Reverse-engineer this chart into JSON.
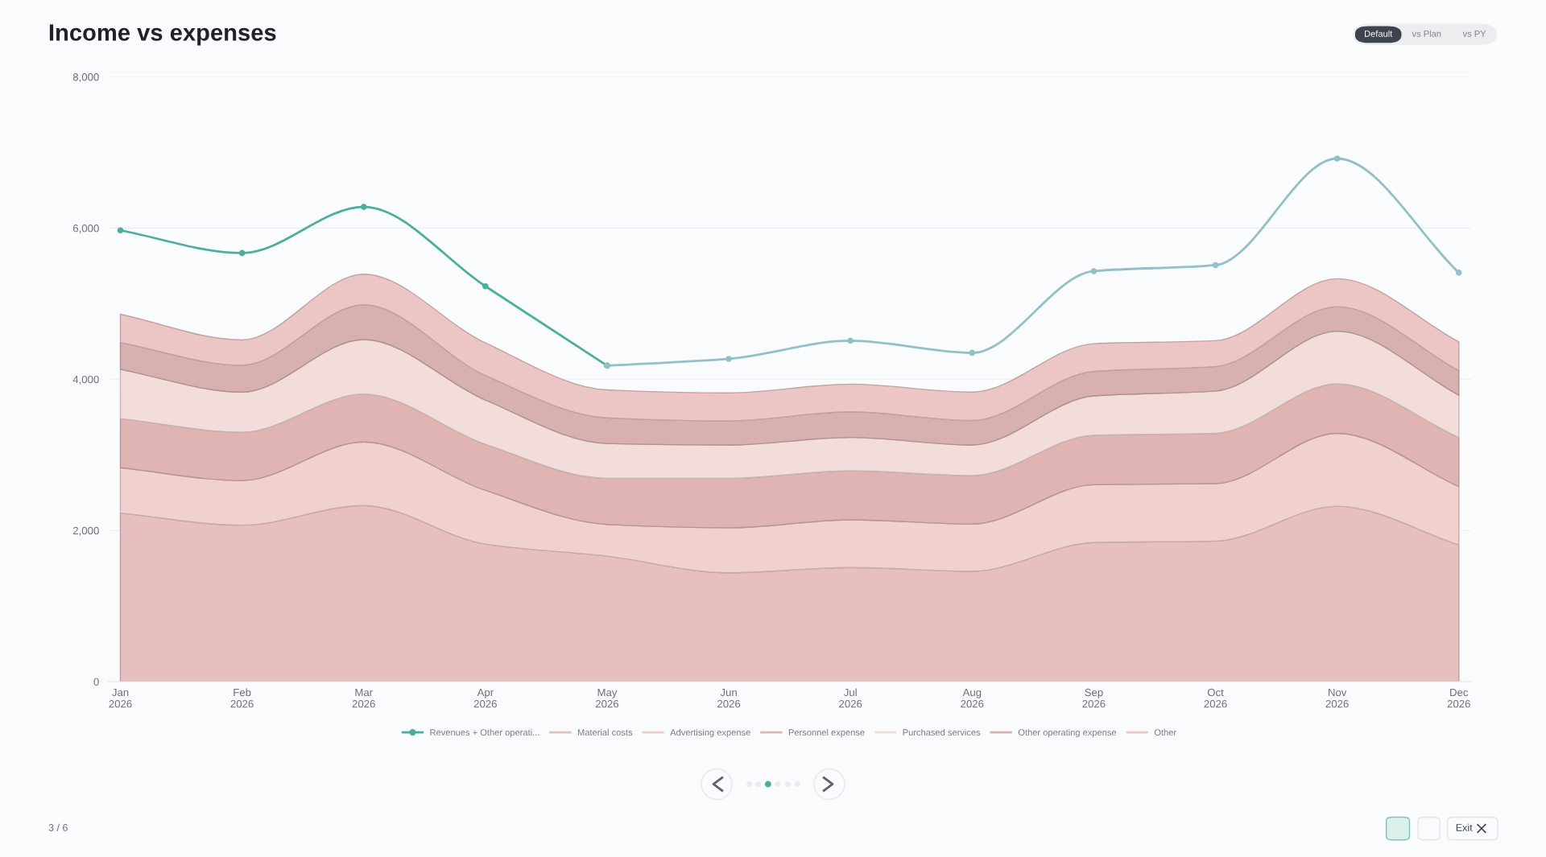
{
  "chart_data": {
    "type": "area",
    "stacked": true,
    "title": "Income vs expenses",
    "categories": [
      "Jan\n2026",
      "Feb\n2026",
      "Mar\n2026",
      "Apr\n2026",
      "May\n2026",
      "Jun\n2026",
      "Jul\n2026",
      "Aug\n2026",
      "Sep\n2026",
      "Oct\n2026",
      "Nov\n2026",
      "Dec\n2026"
    ],
    "ylim": [
      0,
      8000
    ],
    "yticks": [
      0,
      {
        "value": 2000,
        "label": "2,000"
      },
      {
        "value": 4000,
        "label": "4,000"
      },
      {
        "value": 6000,
        "label": "6,000"
      },
      {
        "value": 8000,
        "label": "8,000"
      }
    ],
    "grid": "y",
    "legend": "bottom",
    "series": [
      {
        "name": "Material costs",
        "color": "#e6bfbe",
        "values": [
          2230,
          2070,
          2330,
          1820,
          1660,
          1440,
          1510,
          1460,
          1840,
          1860,
          2320,
          1810
        ]
      },
      {
        "name": "Advertising expense",
        "color": "#f0d1ce",
        "values": [
          600,
          590,
          840,
          710,
          420,
          595,
          630,
          625,
          765,
          760,
          965,
          770
        ]
      },
      {
        "name": "Personnel expense",
        "color": "#dfb4b3",
        "values": [
          650,
          640,
          635,
          610,
          610,
          655,
          650,
          640,
          655,
          665,
          655,
          650
        ]
      },
      {
        "name": "Purchased services",
        "color": "#f3ddda",
        "values": [
          650,
          530,
          720,
          585,
          460,
          440,
          440,
          405,
          520,
          560,
          695,
          560
        ]
      },
      {
        "name": "Other operating expense",
        "color": "#d6b1b0",
        "values": [
          355,
          355,
          460,
          325,
          340,
          320,
          340,
          325,
          325,
          325,
          325,
          325
        ]
      },
      {
        "name": "Other",
        "color": "#ecc6c4",
        "values": [
          375,
          335,
          405,
          430,
          370,
          370,
          365,
          375,
          365,
          340,
          370,
          380
        ]
      },
      {
        "name": "Revenues + Other operati...",
        "type": "line",
        "color": "#4cae9c",
        "marker": "circle",
        "values": [
          5970,
          5670,
          6280,
          5230,
          4180,
          null,
          null,
          null,
          null,
          null,
          null,
          null
        ]
      },
      {
        "type": "line",
        "color": "#93c0c8",
        "marker": "circle",
        "values": [
          null,
          null,
          null,
          null,
          4180,
          4270,
          4510,
          4350,
          5430,
          5510,
          6920,
          5410
        ]
      }
    ],
    "annotations": [
      "Default",
      "vs Plan",
      "vs PY",
      "3 / 6",
      "Exit"
    ]
  }
}
